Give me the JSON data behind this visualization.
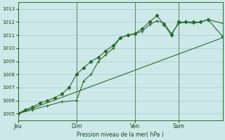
{
  "bg_color": "#cce8e8",
  "grid_color": "#aacccc",
  "line_color": "#2d6a2d",
  "title": "Pression niveau de la mer( hPa )",
  "ylim": [
    1004.5,
    1013.5
  ],
  "yticks": [
    1005,
    1006,
    1007,
    1008,
    1009,
    1010,
    1011,
    1012,
    1013
  ],
  "xtick_labels": [
    "Jeu",
    "Dim",
    "Ven",
    "Sam"
  ],
  "xtick_positions": [
    0.0,
    0.286,
    0.571,
    0.786
  ],
  "xlim": [
    0.0,
    1.0
  ],
  "vline_positions": [
    0.0,
    0.286,
    0.571,
    0.786
  ],
  "trend_line": {
    "x": [
      0.0,
      1.0
    ],
    "y": [
      1005.0,
      1010.8
    ]
  },
  "series1": {
    "x": [
      0.0,
      0.036,
      0.071,
      0.107,
      0.143,
      0.179,
      0.214,
      0.25,
      0.286,
      0.321,
      0.357,
      0.393,
      0.429,
      0.464,
      0.5,
      0.536,
      0.571,
      0.607,
      0.643,
      0.679,
      0.714,
      0.75,
      0.786,
      0.821,
      0.857,
      0.893,
      0.929,
      1.0
    ],
    "y": [
      1005.0,
      1005.3,
      1005.5,
      1005.8,
      1006.0,
      1006.2,
      1006.5,
      1007.0,
      1008.0,
      1008.5,
      1009.0,
      1009.3,
      1009.8,
      1010.2,
      1010.8,
      1011.0,
      1011.1,
      1011.5,
      1012.0,
      1012.5,
      1011.8,
      1011.0,
      1012.0,
      1012.0,
      1012.0,
      1012.0,
      1012.2,
      1010.9
    ]
  },
  "series2": {
    "x": [
      0.0,
      0.071,
      0.143,
      0.214,
      0.286,
      0.321,
      0.357,
      0.393,
      0.429,
      0.464,
      0.5,
      0.536,
      0.571,
      0.607,
      0.643,
      0.679,
      0.714,
      0.75,
      0.786,
      0.821,
      0.857,
      0.893,
      0.929,
      1.0
    ],
    "y": [
      1005.0,
      1005.3,
      1005.6,
      1005.9,
      1006.0,
      1007.5,
      1008.0,
      1009.0,
      1009.5,
      1010.0,
      1010.8,
      1011.0,
      1011.1,
      1011.3,
      1011.8,
      1012.1,
      1011.9,
      1011.1,
      1011.9,
      1012.0,
      1011.9,
      1012.0,
      1012.2,
      1011.9
    ]
  }
}
